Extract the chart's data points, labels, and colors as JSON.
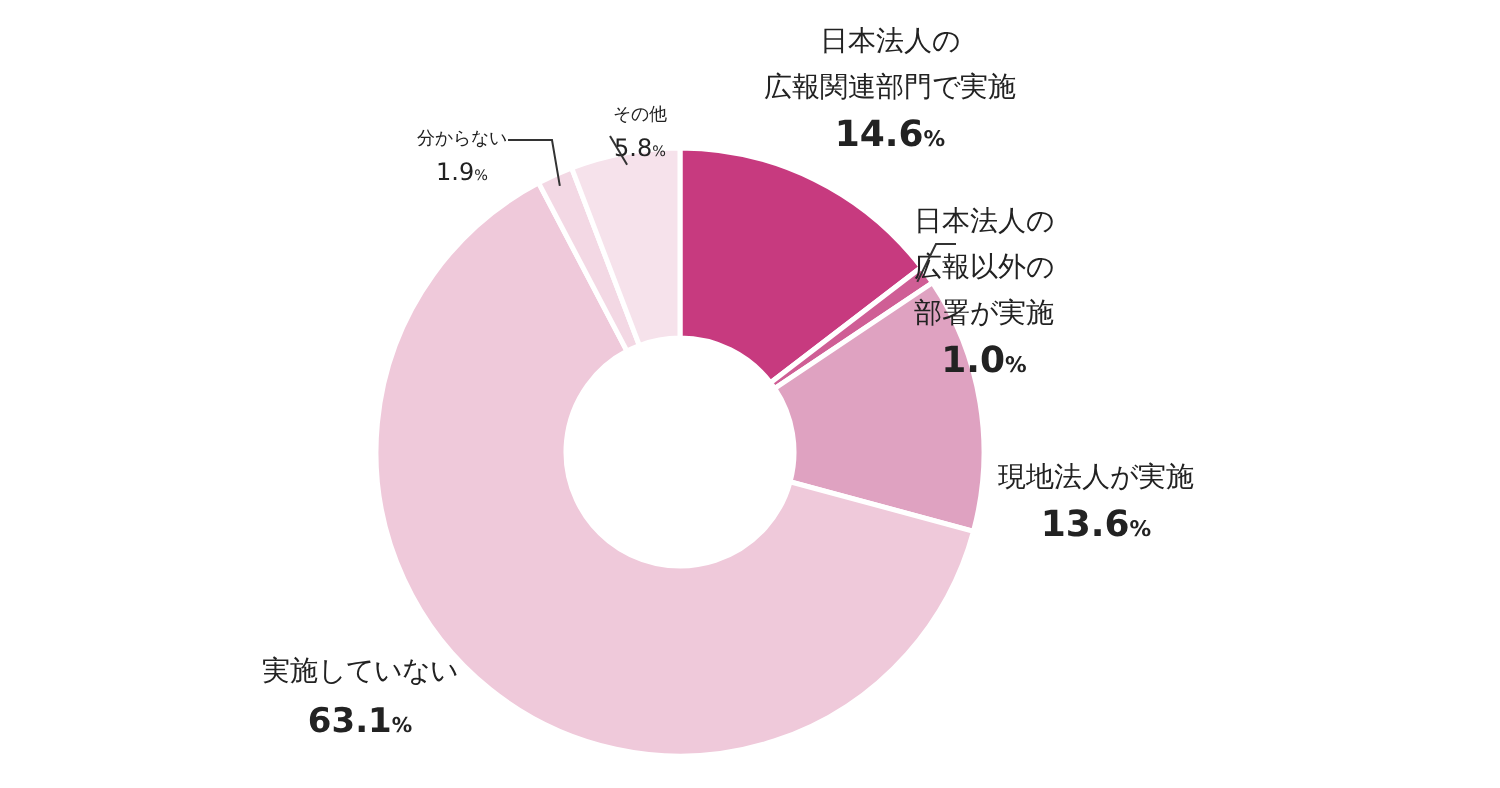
{
  "chart_data": {
    "type": "donut",
    "categories": [
      "日本法人の広報関連部門で実施",
      "日本法人の広報以外の部署が実施",
      "現地法人が実施",
      "実施していない",
      "分からない",
      "その他"
    ],
    "values": [
      14.6,
      1.0,
      13.6,
      63.1,
      1.9,
      5.8
    ],
    "value_labels": [
      "14.6%",
      "1.0%",
      "13.6%",
      "63.1%",
      "1.9%",
      "5.8%"
    ],
    "colors": [
      "#c73a7f",
      "#cf5e95",
      "#dfa2c1",
      "#efc9da",
      "#f3d8e4",
      "#f6e2eb"
    ]
  }
}
